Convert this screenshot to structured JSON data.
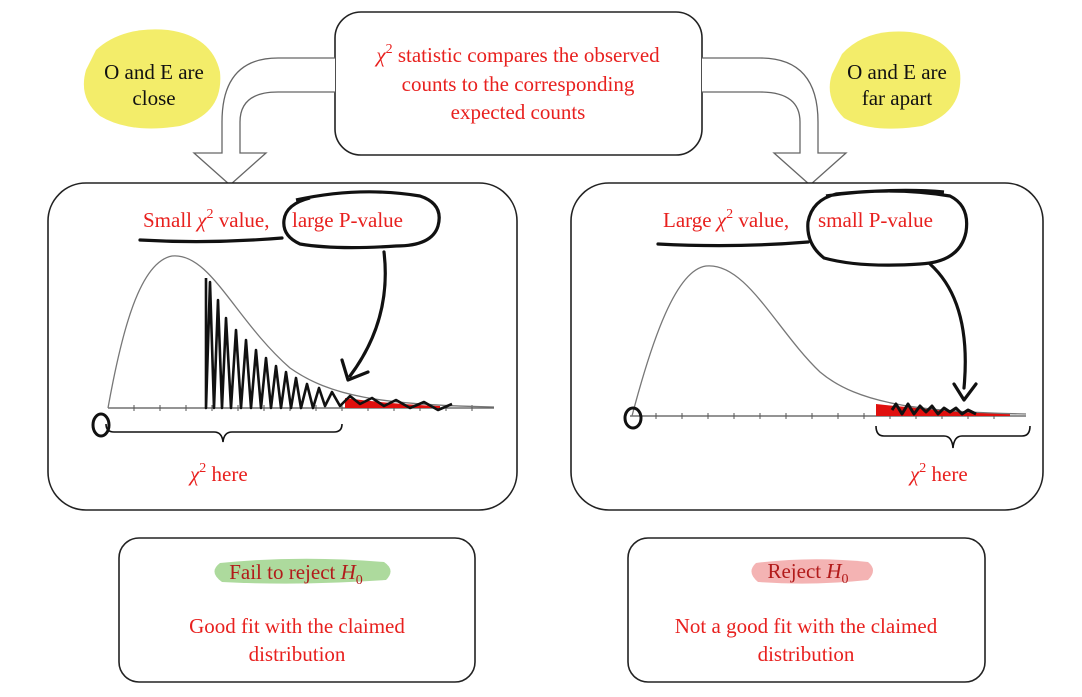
{
  "colors": {
    "text_red": "#e8201e",
    "highlight_yellow": "#f3ed6a",
    "highlight_green": "#9fd48c",
    "highlight_pink": "#f2a6a6",
    "tail_red": "#e0100e",
    "ink": "#111111",
    "curve": "#777777"
  },
  "top_box": {
    "line1_prefix": "χ",
    "line1_exp": "2",
    "line1_rest": " statistic compares the observed",
    "line2": "counts to the corresponding",
    "line3": "expected counts"
  },
  "left_bubble": {
    "line1": "O and E are",
    "line2": "close"
  },
  "right_bubble": {
    "line1": "O and E are",
    "line2": "far apart"
  },
  "left_panel": {
    "label_small": "Small ",
    "label_chi": "χ",
    "label_exp": "2",
    "label_value": " value,",
    "label_p": "large P-value",
    "zero": "0",
    "here_chi": "χ",
    "here_exp": "2",
    "here_text": " here"
  },
  "right_panel": {
    "label_large": "Large ",
    "label_chi": "χ",
    "label_exp": "2",
    "label_value": " value,",
    "label_p": "small P-value",
    "zero": "0",
    "here_chi": "χ",
    "here_exp": "2",
    "here_text": " here"
  },
  "left_result": {
    "title_text": "Fail to reject ",
    "title_h": "H",
    "title_sub": "0",
    "desc_line1": "Good fit with the claimed",
    "desc_line2": "distribution"
  },
  "right_result": {
    "title_text": "Reject ",
    "title_h": "H",
    "title_sub": "0",
    "desc_line1": "Not a good fit with the claimed",
    "desc_line2": "distribution"
  }
}
